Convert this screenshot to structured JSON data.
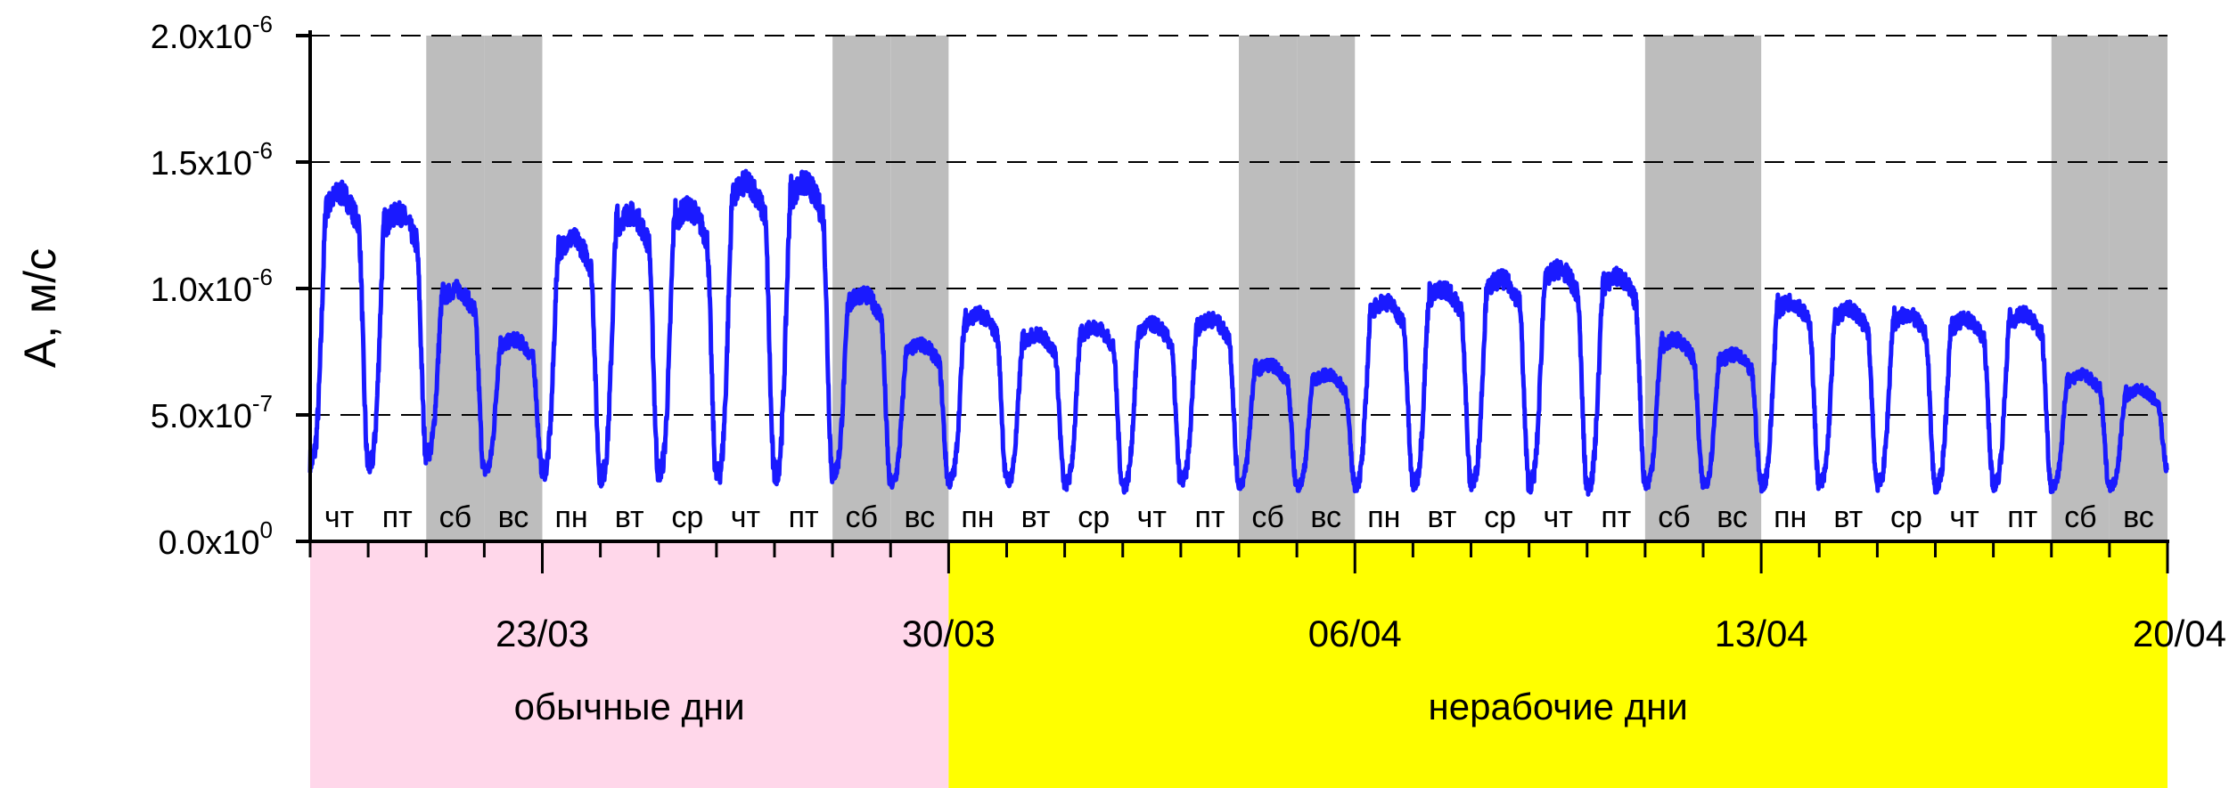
{
  "chart_data": {
    "type": "line",
    "ylabel": "A, м/с",
    "ylim": [
      0,
      2e-06
    ],
    "yticks": [
      {
        "value": 0,
        "mantissa": "0.0",
        "exponent": "0"
      },
      {
        "value": 5e-07,
        "mantissa": "5.0",
        "exponent": "-7"
      },
      {
        "value": 1e-06,
        "mantissa": "1.0",
        "exponent": "-6"
      },
      {
        "value": 1.5e-06,
        "mantissa": "1.5",
        "exponent": "-6"
      },
      {
        "value": 2e-06,
        "mantissa": "2.0",
        "exponent": "-6"
      }
    ],
    "x_start": "2020-03-19",
    "x_end": "2020-04-20",
    "date_labels": [
      {
        "date": "2020-03-23",
        "label": "23/03"
      },
      {
        "date": "2020-03-30",
        "label": "30/03"
      },
      {
        "date": "2020-04-06",
        "label": "06/04"
      },
      {
        "date": "2020-04-13",
        "label": "13/04"
      },
      {
        "date": "2020-04-20",
        "label": "20/04"
      }
    ],
    "grid": "horizontal-dashed",
    "colors": {
      "line": "#1a1aff",
      "weekend": "#bdbdbd",
      "normal": "#ffd7ea",
      "nonworking": "#ffff00"
    },
    "periods": [
      {
        "label": "обычные дни",
        "start": "2020-03-19",
        "end": "2020-03-30"
      },
      {
        "label": "нерабочие дни",
        "start": "2020-03-30",
        "end": "2020-04-20"
      }
    ],
    "days": [
      {
        "date": "2020-03-19",
        "label": "чт",
        "peak": 1.38e-06,
        "weekend": false
      },
      {
        "date": "2020-03-20",
        "label": "пт",
        "peak": 1.3e-06,
        "weekend": false
      },
      {
        "date": "2020-03-21",
        "label": "сб",
        "peak": 1e-06,
        "weekend": true
      },
      {
        "date": "2020-03-22",
        "label": "вс",
        "peak": 8e-07,
        "weekend": true
      },
      {
        "date": "2020-03-23",
        "label": "пн",
        "peak": 1.2e-06,
        "weekend": false
      },
      {
        "date": "2020-03-24",
        "label": "вт",
        "peak": 1.3e-06,
        "weekend": false
      },
      {
        "date": "2020-03-25",
        "label": "ср",
        "peak": 1.32e-06,
        "weekend": false
      },
      {
        "date": "2020-03-26",
        "label": "чт",
        "peak": 1.42e-06,
        "weekend": false
      },
      {
        "date": "2020-03-27",
        "label": "пт",
        "peak": 1.42e-06,
        "weekend": false
      },
      {
        "date": "2020-03-28",
        "label": "сб",
        "peak": 9.8e-07,
        "weekend": true
      },
      {
        "date": "2020-03-29",
        "label": "вс",
        "peak": 7.8e-07,
        "weekend": true
      },
      {
        "date": "2020-03-30",
        "label": "пн",
        "peak": 9e-07,
        "weekend": false
      },
      {
        "date": "2020-03-31",
        "label": "вт",
        "peak": 8.2e-07,
        "weekend": false
      },
      {
        "date": "2020-04-01",
        "label": "ср",
        "peak": 8.5e-07,
        "weekend": false
      },
      {
        "date": "2020-04-02",
        "label": "чт",
        "peak": 8.6e-07,
        "weekend": false
      },
      {
        "date": "2020-04-03",
        "label": "пт",
        "peak": 8.8e-07,
        "weekend": false
      },
      {
        "date": "2020-04-04",
        "label": "сб",
        "peak": 7e-07,
        "weekend": true
      },
      {
        "date": "2020-04-05",
        "label": "вс",
        "peak": 6.6e-07,
        "weekend": true
      },
      {
        "date": "2020-04-06",
        "label": "пн",
        "peak": 9.5e-07,
        "weekend": false
      },
      {
        "date": "2020-04-07",
        "label": "вт",
        "peak": 1e-06,
        "weekend": false
      },
      {
        "date": "2020-04-08",
        "label": "ср",
        "peak": 1.04e-06,
        "weekend": false
      },
      {
        "date": "2020-04-09",
        "label": "чт",
        "peak": 1.08e-06,
        "weekend": false
      },
      {
        "date": "2020-04-10",
        "label": "пт",
        "peak": 1.05e-06,
        "weekend": false
      },
      {
        "date": "2020-04-11",
        "label": "сб",
        "peak": 8e-07,
        "weekend": true
      },
      {
        "date": "2020-04-12",
        "label": "вс",
        "peak": 7.4e-07,
        "weekend": true
      },
      {
        "date": "2020-04-13",
        "label": "пн",
        "peak": 9.5e-07,
        "weekend": false
      },
      {
        "date": "2020-04-14",
        "label": "вт",
        "peak": 9.2e-07,
        "weekend": false
      },
      {
        "date": "2020-04-15",
        "label": "ср",
        "peak": 9e-07,
        "weekend": false
      },
      {
        "date": "2020-04-16",
        "label": "чт",
        "peak": 8.8e-07,
        "weekend": false
      },
      {
        "date": "2020-04-17",
        "label": "пт",
        "peak": 9e-07,
        "weekend": false
      },
      {
        "date": "2020-04-18",
        "label": "сб",
        "peak": 6.6e-07,
        "weekend": true
      },
      {
        "date": "2020-04-19",
        "label": "вс",
        "peak": 6e-07,
        "weekend": true
      }
    ],
    "troughs": [
      3.2e-07,
      3e-07,
      3.5e-07,
      2.8e-07,
      2.8e-07,
      2.6e-07,
      2.8e-07,
      2.6e-07,
      2.7e-07,
      2.7e-07,
      2.3e-07,
      2.4e-07,
      2.4e-07,
      2.3e-07,
      2.2e-07,
      2.4e-07,
      2.3e-07,
      2.2e-07,
      2.3e-07,
      2.3e-07,
      2.3e-07,
      2.3e-07,
      2.2e-07,
      2.3e-07,
      2.3e-07,
      2.3e-07,
      2.3e-07,
      2.3e-07,
      2.2e-07,
      2.3e-07,
      2.2e-07,
      2.2e-07,
      2.8e-07
    ]
  }
}
